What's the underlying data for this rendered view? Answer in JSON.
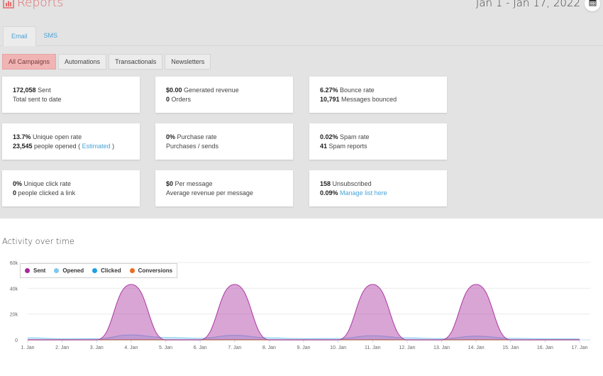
{
  "header": {
    "title": "Reports",
    "date_range": "Jan 1 - Jan 17, 2022"
  },
  "channel_tabs": [
    "Email",
    "SMS"
  ],
  "campaign_tabs": [
    "All Campaigns",
    "Automations",
    "Transactionals",
    "Newsletters"
  ],
  "cards": {
    "sent": {
      "value": "172,058",
      "label": "Sent",
      "sub": "Total sent to date"
    },
    "revenue": {
      "value": "$0.00",
      "label": "Generated revenue",
      "sub_value": "0",
      "sub_label": "Orders"
    },
    "bounce": {
      "value": "6.27%",
      "label": "Bounce rate",
      "sub_value": "10,791",
      "sub_label": "Messages bounced"
    },
    "open": {
      "value": "13.7%",
      "label": "Unique open rate",
      "sub_value": "23,545",
      "sub_label": "people opened (",
      "link": "Estimated",
      "sub_tail": ")"
    },
    "purchase": {
      "value": "0%",
      "label": "Purchase rate",
      "sub": "Purchases / sends"
    },
    "spam": {
      "value": "0.02%",
      "label": "Spam rate",
      "sub_value": "41",
      "sub_label": "Spam reports"
    },
    "click": {
      "value": "0%",
      "label": "Unique click rate",
      "sub_value": "0",
      "sub_label": "people clicked a link"
    },
    "per_message": {
      "value": "$0",
      "label": "Per message",
      "sub": "Average revenue per message"
    },
    "unsub": {
      "value": "158",
      "label": "Unsubscribed",
      "sub_value": "0.09%",
      "link": "Manage list here"
    }
  },
  "activity_title": "Activity over time",
  "chart_data": {
    "type": "area",
    "x": [
      "1. Jan",
      "2. Jan",
      "3. Jan",
      "4. Jan",
      "5. Jan",
      "6. Jan",
      "7. Jan",
      "8. Jan",
      "9. Jan",
      "10. Jan",
      "11. Jan",
      "12. Jan",
      "13. Jan",
      "14. Jan",
      "15. Jan",
      "16. Jan",
      "17. Jan"
    ],
    "ylim": [
      0,
      60000
    ],
    "yticks": [
      0,
      20000,
      40000,
      60000
    ],
    "ytick_labels": [
      "0",
      "20k",
      "40k",
      "60k"
    ],
    "legend_position": "top-left",
    "grid": true,
    "series": [
      {
        "name": "Sent",
        "color": "#a5289c",
        "values": [
          0,
          0,
          0,
          43000,
          0,
          0,
          43000,
          0,
          0,
          0,
          43000,
          0,
          0,
          43000,
          0,
          0,
          0
        ]
      },
      {
        "name": "Opened",
        "color": "#7ec8f0",
        "values": [
          1500,
          800,
          900,
          3800,
          1800,
          1200,
          3500,
          1500,
          900,
          1000,
          3200,
          1500,
          900,
          2900,
          1200,
          800,
          700
        ]
      },
      {
        "name": "Clicked",
        "color": "#1ea0e0",
        "values": [
          0,
          0,
          0,
          0,
          0,
          0,
          0,
          0,
          0,
          0,
          0,
          0,
          0,
          0,
          0,
          0,
          0
        ]
      },
      {
        "name": "Conversions",
        "color": "#ee6b22",
        "values": [
          0,
          0,
          0,
          0,
          0,
          0,
          0,
          0,
          0,
          0,
          0,
          0,
          0,
          0,
          0,
          0,
          0
        ]
      }
    ]
  }
}
